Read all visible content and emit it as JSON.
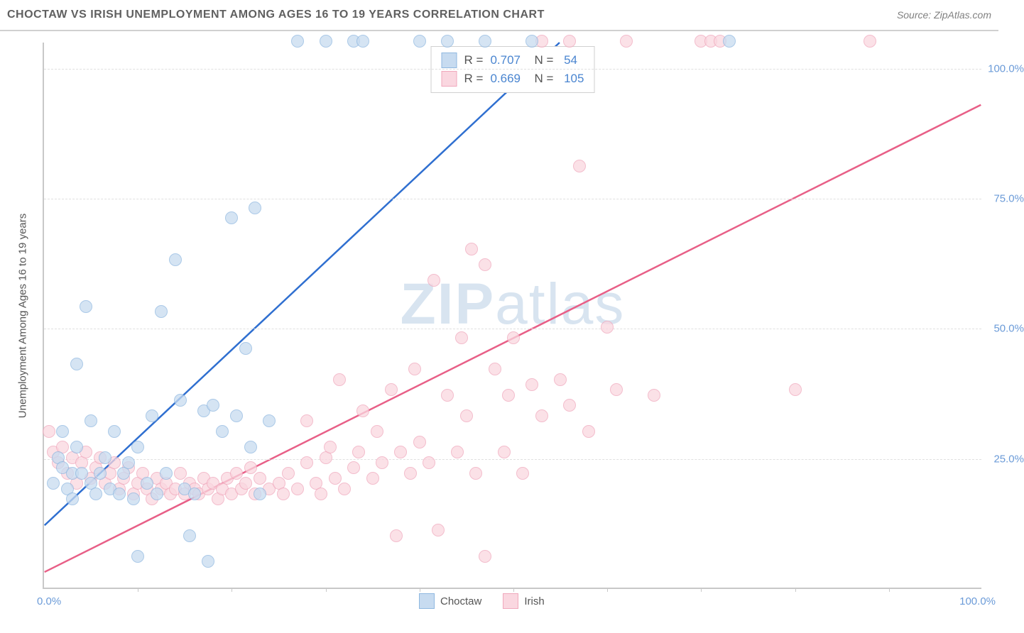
{
  "header": {
    "title": "CHOCTAW VS IRISH UNEMPLOYMENT AMONG AGES 16 TO 19 YEARS CORRELATION CHART",
    "source_label": "Source: ",
    "source_name": "ZipAtlas.com"
  },
  "chart": {
    "type": "scatter",
    "ylabel": "Unemployment Among Ages 16 to 19 years",
    "watermark": "ZIPatlas",
    "background_color": "#ffffff",
    "grid_color": "#e0e0e0",
    "axis_color": "#c8c8c8",
    "label_color": "#6b9bd8",
    "xlim": [
      0,
      100
    ],
    "ylim": [
      0,
      105
    ],
    "ytick_labels": [
      "25.0%",
      "50.0%",
      "75.0%",
      "100.0%"
    ],
    "ytick_values": [
      25,
      50,
      75,
      100
    ],
    "xtick_labels_ends": [
      "0.0%",
      "100.0%"
    ],
    "xtick_marks": [
      10,
      20,
      30,
      40,
      50,
      60,
      70,
      80,
      90
    ],
    "series": [
      {
        "name": "Choctaw",
        "fill": "#c7dbf0",
        "stroke": "#8fb8e0",
        "line_color": "#2f6fd0",
        "R": "0.707",
        "N": "54",
        "regression": {
          "x1": 0,
          "y1": 12,
          "x2": 55,
          "y2": 105
        },
        "points": [
          [
            1,
            20
          ],
          [
            1.5,
            25
          ],
          [
            2,
            23
          ],
          [
            2,
            30
          ],
          [
            2.5,
            19
          ],
          [
            3,
            22
          ],
          [
            3,
            17
          ],
          [
            3.5,
            27
          ],
          [
            3.5,
            43
          ],
          [
            4,
            22
          ],
          [
            4.5,
            54
          ],
          [
            5,
            20
          ],
          [
            5,
            32
          ],
          [
            5.5,
            18
          ],
          [
            6,
            22
          ],
          [
            6.5,
            25
          ],
          [
            7,
            19
          ],
          [
            7.5,
            30
          ],
          [
            8,
            18
          ],
          [
            8.5,
            22
          ],
          [
            9,
            24
          ],
          [
            9.5,
            17
          ],
          [
            10,
            27
          ],
          [
            10,
            6
          ],
          [
            11,
            20
          ],
          [
            11.5,
            33
          ],
          [
            12,
            18
          ],
          [
            12.5,
            53
          ],
          [
            13,
            22
          ],
          [
            14,
            63
          ],
          [
            14.5,
            36
          ],
          [
            15,
            19
          ],
          [
            15.5,
            10
          ],
          [
            16,
            18
          ],
          [
            17,
            34
          ],
          [
            17.5,
            5
          ],
          [
            18,
            35
          ],
          [
            19,
            30
          ],
          [
            20,
            71
          ],
          [
            20.5,
            33
          ],
          [
            21.5,
            46
          ],
          [
            22,
            27
          ],
          [
            22.5,
            73
          ],
          [
            23,
            18
          ],
          [
            24,
            32
          ],
          [
            27,
            105
          ],
          [
            30,
            105
          ],
          [
            33,
            105
          ],
          [
            34,
            105
          ],
          [
            40,
            105
          ],
          [
            43,
            105
          ],
          [
            47,
            105
          ],
          [
            52,
            105
          ],
          [
            73,
            105
          ]
        ]
      },
      {
        "name": "Irish",
        "fill": "#fad7e0",
        "stroke": "#f0a8bc",
        "line_color": "#e85f87",
        "R": "0.669",
        "N": "105",
        "regression": {
          "x1": 0,
          "y1": 3,
          "x2": 100,
          "y2": 93
        },
        "points": [
          [
            0.5,
            30
          ],
          [
            1,
            26
          ],
          [
            1.5,
            24
          ],
          [
            2,
            27
          ],
          [
            2.5,
            22
          ],
          [
            3,
            25
          ],
          [
            3.5,
            20
          ],
          [
            4,
            24
          ],
          [
            4.5,
            26
          ],
          [
            5,
            21
          ],
          [
            5.5,
            23
          ],
          [
            6,
            25
          ],
          [
            6.5,
            20
          ],
          [
            7,
            22
          ],
          [
            7.5,
            24
          ],
          [
            8,
            19
          ],
          [
            8.5,
            21
          ],
          [
            9,
            23
          ],
          [
            9.5,
            18
          ],
          [
            10,
            20
          ],
          [
            10.5,
            22
          ],
          [
            11,
            19
          ],
          [
            11.5,
            17
          ],
          [
            12,
            21
          ],
          [
            12.5,
            19
          ],
          [
            13,
            20
          ],
          [
            13.5,
            18
          ],
          [
            14,
            19
          ],
          [
            14.5,
            22
          ],
          [
            15,
            18
          ],
          [
            15.5,
            20
          ],
          [
            16,
            19
          ],
          [
            16.5,
            18
          ],
          [
            17,
            21
          ],
          [
            17.5,
            19
          ],
          [
            18,
            20
          ],
          [
            18.5,
            17
          ],
          [
            19,
            19
          ],
          [
            19.5,
            21
          ],
          [
            20,
            18
          ],
          [
            20.5,
            22
          ],
          [
            21,
            19
          ],
          [
            21.5,
            20
          ],
          [
            22,
            23
          ],
          [
            22.5,
            18
          ],
          [
            23,
            21
          ],
          [
            24,
            19
          ],
          [
            25,
            20
          ],
          [
            25.5,
            18
          ],
          [
            26,
            22
          ],
          [
            27,
            19
          ],
          [
            28,
            24
          ],
          [
            28,
            32
          ],
          [
            29,
            20
          ],
          [
            29.5,
            18
          ],
          [
            30,
            25
          ],
          [
            30.5,
            27
          ],
          [
            31,
            21
          ],
          [
            31.5,
            40
          ],
          [
            32,
            19
          ],
          [
            33,
            23
          ],
          [
            33.5,
            26
          ],
          [
            34,
            34
          ],
          [
            35,
            21
          ],
          [
            35.5,
            30
          ],
          [
            36,
            24
          ],
          [
            37,
            38
          ],
          [
            37.5,
            10
          ],
          [
            38,
            26
          ],
          [
            39,
            22
          ],
          [
            39.5,
            42
          ],
          [
            40,
            28
          ],
          [
            41,
            24
          ],
          [
            41.5,
            59
          ],
          [
            42,
            11
          ],
          [
            43,
            37
          ],
          [
            44,
            26
          ],
          [
            44.5,
            48
          ],
          [
            45,
            33
          ],
          [
            45.5,
            65
          ],
          [
            46,
            22
          ],
          [
            47,
            62
          ],
          [
            48,
            42
          ],
          [
            49,
            26
          ],
          [
            49.5,
            37
          ],
          [
            50,
            48
          ],
          [
            51,
            22
          ],
          [
            52,
            39
          ],
          [
            53,
            33
          ],
          [
            55,
            40
          ],
          [
            56,
            35
          ],
          [
            57,
            81
          ],
          [
            58,
            30
          ],
          [
            60,
            50
          ],
          [
            61,
            38
          ],
          [
            62,
            105
          ],
          [
            65,
            37
          ],
          [
            70,
            105
          ],
          [
            71,
            105
          ],
          [
            72,
            105
          ],
          [
            80,
            38
          ],
          [
            88,
            105
          ],
          [
            47,
            6
          ],
          [
            53,
            105
          ],
          [
            56,
            105
          ]
        ]
      }
    ],
    "legend": {
      "items": [
        {
          "label": "Choctaw",
          "fill": "#c7dbf0",
          "stroke": "#8fb8e0"
        },
        {
          "label": "Irish",
          "fill": "#fad7e0",
          "stroke": "#f0a8bc"
        }
      ]
    }
  }
}
